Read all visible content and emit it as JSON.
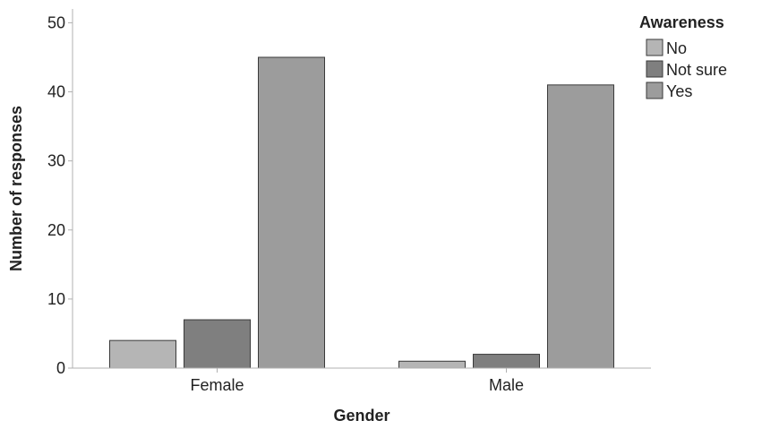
{
  "chart_data": {
    "type": "bar",
    "title": "",
    "xlabel": "Gender",
    "ylabel": "Number of responses",
    "categories": [
      "Female",
      "Male"
    ],
    "series": [
      {
        "name": "No",
        "values": [
          4,
          1
        ],
        "color": "#b5b5b5"
      },
      {
        "name": "Not sure",
        "values": [
          7,
          2
        ],
        "color": "#7f7f7f"
      },
      {
        "name": "Yes",
        "values": [
          45,
          41
        ],
        "color": "#9c9c9c"
      }
    ],
    "ylim": [
      0,
      52
    ],
    "yticks": [
      0,
      10,
      20,
      30,
      40,
      50
    ],
    "grid": false,
    "legend": {
      "title": "Awareness",
      "position": "top-right"
    }
  }
}
